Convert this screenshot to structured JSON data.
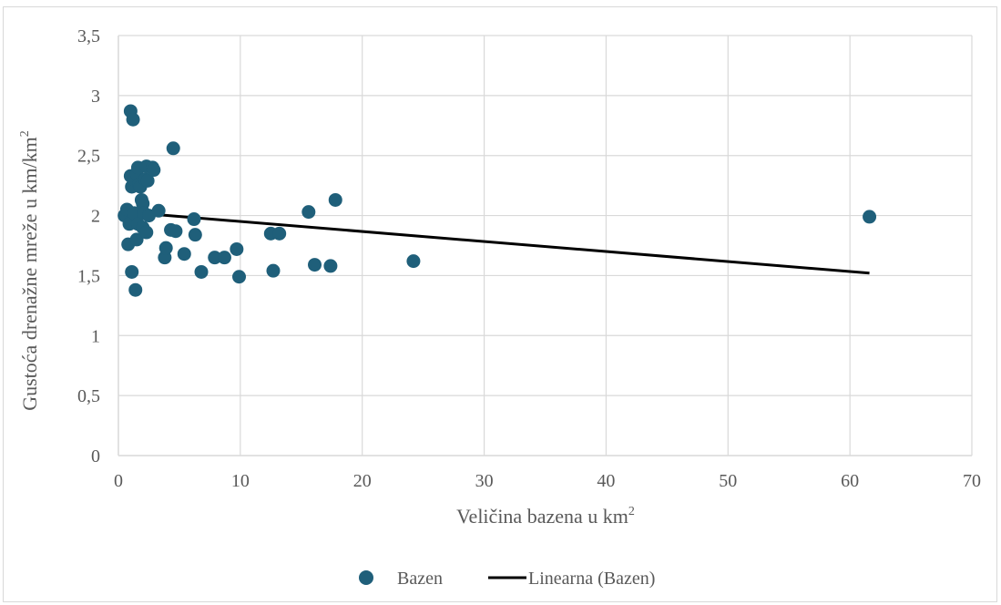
{
  "chart_data": {
    "type": "scatter",
    "xlabel": "Veličina bazena u km",
    "xlabel_sup": "2",
    "ylabel": "Gustoća drenažne mreže u km/km",
    "ylabel_sup": "2",
    "xlim": [
      0,
      70
    ],
    "ylim": [
      0,
      3.5
    ],
    "x_ticks": [
      0,
      10,
      20,
      30,
      40,
      50,
      60,
      70
    ],
    "x_tick_labels": [
      "0",
      "10",
      "20",
      "30",
      "40",
      "50",
      "60",
      "70"
    ],
    "y_ticks": [
      0,
      0.5,
      1,
      1.5,
      2,
      2.5,
      3,
      3.5
    ],
    "y_tick_labels": [
      "0",
      "0,5",
      "1",
      "1,5",
      "2",
      "2,5",
      "3",
      "3,5"
    ],
    "grid": true,
    "legend_position": "bottom",
    "colors": {
      "points": "#1f5f7a",
      "trendline": "#000000",
      "grid": "#d9d9d9",
      "text": "#595959"
    },
    "series": [
      {
        "name": "Bazen",
        "kind": "scatter",
        "points": [
          {
            "x": 0.5,
            "y": 2.0
          },
          {
            "x": 0.7,
            "y": 2.05
          },
          {
            "x": 0.8,
            "y": 1.76
          },
          {
            "x": 0.9,
            "y": 1.93
          },
          {
            "x": 1.0,
            "y": 2.87
          },
          {
            "x": 1.0,
            "y": 2.33
          },
          {
            "x": 1.1,
            "y": 2.24
          },
          {
            "x": 1.1,
            "y": 1.53
          },
          {
            "x": 1.2,
            "y": 2.8
          },
          {
            "x": 1.3,
            "y": 2.3
          },
          {
            "x": 1.3,
            "y": 2.02
          },
          {
            "x": 1.4,
            "y": 1.38
          },
          {
            "x": 1.5,
            "y": 2.35
          },
          {
            "x": 1.5,
            "y": 1.8
          },
          {
            "x": 1.6,
            "y": 2.4
          },
          {
            "x": 1.6,
            "y": 1.93
          },
          {
            "x": 1.7,
            "y": 2.26
          },
          {
            "x": 1.8,
            "y": 2.24
          },
          {
            "x": 1.9,
            "y": 2.13
          },
          {
            "x": 2.0,
            "y": 2.1
          },
          {
            "x": 2.0,
            "y": 1.9
          },
          {
            "x": 2.1,
            "y": 2.02
          },
          {
            "x": 2.2,
            "y": 2.3
          },
          {
            "x": 2.3,
            "y": 1.86
          },
          {
            "x": 2.3,
            "y": 2.41
          },
          {
            "x": 2.4,
            "y": 2.29
          },
          {
            "x": 2.5,
            "y": 2.0
          },
          {
            "x": 2.8,
            "y": 2.4
          },
          {
            "x": 2.9,
            "y": 2.38
          },
          {
            "x": 3.3,
            "y": 2.04
          },
          {
            "x": 3.8,
            "y": 1.65
          },
          {
            "x": 3.9,
            "y": 1.73
          },
          {
            "x": 4.3,
            "y": 1.88
          },
          {
            "x": 4.5,
            "y": 2.56
          },
          {
            "x": 4.7,
            "y": 1.87
          },
          {
            "x": 5.4,
            "y": 1.68
          },
          {
            "x": 6.2,
            "y": 1.97
          },
          {
            "x": 6.3,
            "y": 1.84
          },
          {
            "x": 6.8,
            "y": 1.53
          },
          {
            "x": 7.9,
            "y": 1.65
          },
          {
            "x": 8.7,
            "y": 1.65
          },
          {
            "x": 9.7,
            "y": 1.72
          },
          {
            "x": 9.9,
            "y": 1.49
          },
          {
            "x": 12.5,
            "y": 1.85
          },
          {
            "x": 12.7,
            "y": 1.54
          },
          {
            "x": 13.2,
            "y": 1.85
          },
          {
            "x": 15.6,
            "y": 2.03
          },
          {
            "x": 16.1,
            "y": 1.59
          },
          {
            "x": 17.4,
            "y": 1.58
          },
          {
            "x": 17.8,
            "y": 2.13
          },
          {
            "x": 24.2,
            "y": 1.62
          },
          {
            "x": 61.6,
            "y": 1.99
          }
        ]
      },
      {
        "name": "Linearna (Bazen)",
        "kind": "linear-trendline",
        "points": [
          {
            "x": 0.5,
            "y": 2.03
          },
          {
            "x": 61.6,
            "y": 1.52
          }
        ]
      }
    ]
  }
}
